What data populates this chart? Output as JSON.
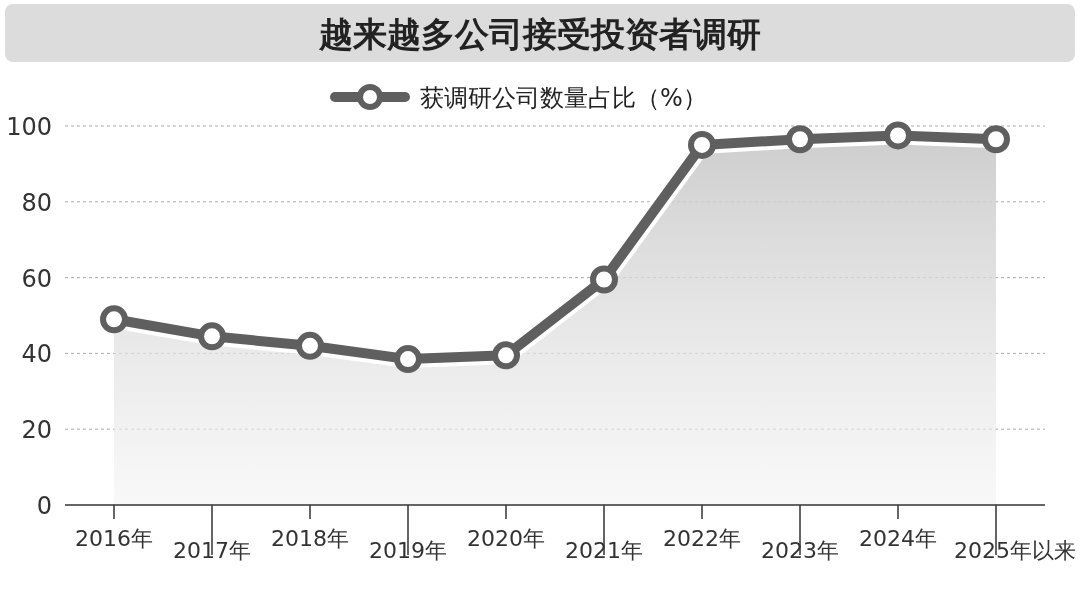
{
  "chart_data": {
    "type": "area",
    "title": "越来越多公司接受投资者调研",
    "categories": [
      "2016年",
      "2017年",
      "2018年",
      "2019年",
      "2020年",
      "2021年",
      "2022年",
      "2023年",
      "2024年",
      "2025年以来"
    ],
    "series": [
      {
        "name": "获调研公司数量占比（%）",
        "color": "#5f5f5f",
        "values": [
          49,
          44.5,
          42,
          38.5,
          39.5,
          59.5,
          95,
          96.5,
          97.5,
          96.5
        ]
      }
    ],
    "ylim": [
      0,
      100
    ],
    "yticks": [
      0,
      20,
      40,
      60,
      80,
      100
    ],
    "grid": "y",
    "legend": "top",
    "marker": "circle",
    "line_style": "solid"
  }
}
